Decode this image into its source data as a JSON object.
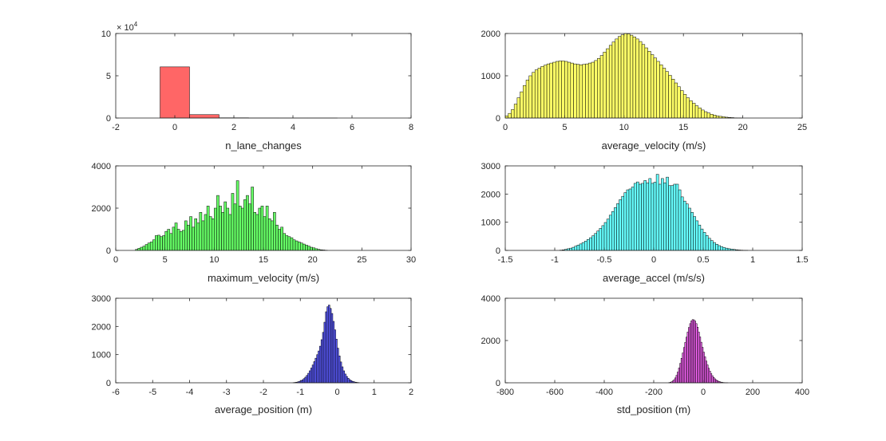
{
  "chart_data": [
    {
      "type": "bar",
      "xlabel": "n_lane_changes",
      "xlim": [
        -2,
        8
      ],
      "ylim": [
        0,
        100000
      ],
      "xticks": [
        "-2",
        "0",
        "2",
        "4",
        "6",
        "8"
      ],
      "yticks": [
        "0",
        "5",
        "10"
      ],
      "y_exponent_label": "× 10",
      "y_exponent": "4",
      "color": "#ff6666",
      "bin_width": 1,
      "x": [
        0,
        1,
        2,
        3,
        4,
        5,
        6,
        7
      ],
      "values": [
        60500,
        4000,
        300,
        60,
        15,
        5,
        2,
        1
      ]
    },
    {
      "type": "bar",
      "xlabel": "average_velocity (m/s)",
      "xlim": [
        0,
        25
      ],
      "ylim": [
        0,
        2000
      ],
      "xticks": [
        "0",
        "5",
        "10",
        "15",
        "20",
        "25"
      ],
      "yticks": [
        "0",
        "1000",
        "2000"
      ],
      "color": "#ffff66",
      "bin_width": 0.25,
      "x": [
        0.125,
        0.375,
        0.625,
        0.875,
        1.125,
        1.375,
        1.625,
        1.875,
        2.125,
        2.375,
        2.625,
        2.875,
        3.125,
        3.375,
        3.625,
        3.875,
        4.125,
        4.375,
        4.625,
        4.875,
        5.125,
        5.375,
        5.625,
        5.875,
        6.125,
        6.375,
        6.625,
        6.875,
        7.125,
        7.375,
        7.625,
        7.875,
        8.125,
        8.375,
        8.625,
        8.875,
        9.125,
        9.375,
        9.625,
        9.875,
        10.125,
        10.375,
        10.625,
        10.875,
        11.125,
        11.375,
        11.625,
        11.875,
        12.125,
        12.375,
        12.625,
        12.875,
        13.125,
        13.375,
        13.625,
        13.875,
        14.125,
        14.375,
        14.625,
        14.875,
        15.125,
        15.375,
        15.625,
        15.875,
        16.125,
        16.375,
        16.625,
        16.875,
        17.125,
        17.375,
        17.625,
        17.875,
        18.125,
        18.375,
        18.625,
        18.875,
        19.125,
        19.375,
        19.625,
        19.875
      ],
      "values": [
        50,
        110,
        200,
        330,
        480,
        620,
        770,
        900,
        1000,
        1080,
        1140,
        1180,
        1220,
        1250,
        1280,
        1300,
        1320,
        1340,
        1350,
        1350,
        1340,
        1320,
        1300,
        1280,
        1270,
        1260,
        1270,
        1280,
        1300,
        1320,
        1360,
        1410,
        1480,
        1560,
        1640,
        1720,
        1800,
        1870,
        1930,
        1970,
        2000,
        1990,
        1960,
        1920,
        1870,
        1810,
        1740,
        1660,
        1580,
        1500,
        1420,
        1340,
        1260,
        1180,
        1100,
        1010,
        920,
        830,
        740,
        650,
        560,
        480,
        410,
        350,
        290,
        240,
        190,
        150,
        120,
        90,
        70,
        50,
        40,
        30,
        20,
        15,
        10,
        5,
        3,
        2
      ]
    },
    {
      "type": "bar",
      "xlabel": "maximum_velocity (m/s)",
      "xlim": [
        0,
        30
      ],
      "ylim": [
        0,
        4000
      ],
      "xticks": [
        "0",
        "5",
        "10",
        "15",
        "20",
        "25",
        "30"
      ],
      "yticks": [
        "0",
        "2000",
        "4000"
      ],
      "color": "#66ff66",
      "bin_width": 0.25,
      "x": [
        2.125,
        2.375,
        2.625,
        2.875,
        3.125,
        3.375,
        3.625,
        3.875,
        4.125,
        4.375,
        4.625,
        4.875,
        5.125,
        5.375,
        5.625,
        5.875,
        6.125,
        6.375,
        6.625,
        6.875,
        7.125,
        7.375,
        7.625,
        7.875,
        8.125,
        8.375,
        8.625,
        8.875,
        9.125,
        9.375,
        9.625,
        9.875,
        10.125,
        10.375,
        10.625,
        10.875,
        11.125,
        11.375,
        11.625,
        11.875,
        12.125,
        12.375,
        12.625,
        12.875,
        13.125,
        13.375,
        13.625,
        13.875,
        14.125,
        14.375,
        14.625,
        14.875,
        15.125,
        15.375,
        15.625,
        15.875,
        16.125,
        16.375,
        16.625,
        16.875,
        17.125,
        17.375,
        17.625,
        17.875,
        18.125,
        18.375,
        18.625,
        18.875,
        19.125,
        19.375,
        19.625,
        19.875,
        20.125,
        20.375,
        20.625,
        20.875,
        21.125,
        21.375
      ],
      "values": [
        50,
        100,
        150,
        200,
        280,
        350,
        400,
        500,
        700,
        720,
        650,
        700,
        900,
        1000,
        800,
        1100,
        1300,
        1000,
        900,
        950,
        1400,
        1200,
        1600,
        1100,
        1500,
        1300,
        1800,
        1400,
        1700,
        2100,
        1600,
        1500,
        2000,
        2600,
        2100,
        1800,
        2300,
        2000,
        1700,
        2700,
        2200,
        3300,
        2100,
        2000,
        2400,
        2600,
        2200,
        3000,
        1800,
        1700,
        2000,
        2100,
        1600,
        2100,
        1500,
        1400,
        1800,
        1200,
        1000,
        1100,
        800,
        700,
        650,
        600,
        500,
        450,
        400,
        350,
        300,
        250,
        200,
        150,
        120,
        80,
        50,
        30,
        20,
        10
      ]
    },
    {
      "type": "bar",
      "xlabel": "average_accel (m/s/s)",
      "xlim": [
        -1.5,
        1.5
      ],
      "ylim": [
        0,
        3000
      ],
      "xticks": [
        "-1.5",
        "-1",
        "-0.5",
        "0",
        "0.5",
        "1",
        "1.5"
      ],
      "yticks": [
        "0",
        "1000",
        "2000",
        "3000"
      ],
      "color": "#66ffff",
      "bin_width": 0.025,
      "x": [
        -0.9375,
        -0.9125,
        -0.8875,
        -0.8625,
        -0.8375,
        -0.8125,
        -0.7875,
        -0.7625,
        -0.7375,
        -0.7125,
        -0.6875,
        -0.6625,
        -0.6375,
        -0.6125,
        -0.5875,
        -0.5625,
        -0.5375,
        -0.5125,
        -0.4875,
        -0.4625,
        -0.4375,
        -0.4125,
        -0.3875,
        -0.3625,
        -0.3375,
        -0.3125,
        -0.2875,
        -0.2625,
        -0.2375,
        -0.2125,
        -0.1875,
        -0.1625,
        -0.1375,
        -0.1125,
        -0.0875,
        -0.0625,
        -0.0375,
        -0.0125,
        0.0125,
        0.0375,
        0.0625,
        0.0875,
        0.1125,
        0.1375,
        0.1625,
        0.1875,
        0.2125,
        0.2375,
        0.2625,
        0.2875,
        0.3125,
        0.3375,
        0.3625,
        0.3875,
        0.4125,
        0.4375,
        0.4625,
        0.4875,
        0.5125,
        0.5375,
        0.5625,
        0.5875,
        0.6125,
        0.6375,
        0.6625,
        0.6875,
        0.7125,
        0.7375,
        0.7625,
        0.7875,
        0.8125,
        0.8375,
        0.8625,
        0.8875,
        0.9125,
        0.9375
      ],
      "values": [
        10,
        20,
        40,
        60,
        80,
        110,
        150,
        190,
        230,
        280,
        330,
        390,
        450,
        520,
        600,
        690,
        780,
        880,
        990,
        1110,
        1250,
        1380,
        1520,
        1660,
        1800,
        1920,
        2050,
        2150,
        2180,
        2250,
        2380,
        2430,
        2350,
        2380,
        2480,
        2400,
        2550,
        2380,
        2420,
        2700,
        2350,
        2550,
        2400,
        2600,
        2300,
        2300,
        2350,
        2350,
        2150,
        1900,
        1750,
        1650,
        1500,
        1350,
        1200,
        1050,
        900,
        760,
        640,
        530,
        430,
        350,
        280,
        220,
        170,
        130,
        100,
        80,
        60,
        45,
        35,
        25,
        15,
        10,
        5,
        3
      ]
    },
    {
      "type": "bar",
      "xlabel": "average_position (m)",
      "xlim": [
        -6,
        2
      ],
      "ylim": [
        0,
        3000
      ],
      "xticks": [
        "-6",
        "-5",
        "-4",
        "-3",
        "-2",
        "-1",
        "0",
        "1",
        "2"
      ],
      "yticks": [
        "0",
        "1000",
        "2000",
        "3000"
      ],
      "color": "#5c5cff",
      "bin_width": 0.04,
      "x": [
        -1.18,
        -1.14,
        -1.1,
        -1.06,
        -1.02,
        -0.98,
        -0.94,
        -0.9,
        -0.86,
        -0.82,
        -0.78,
        -0.74,
        -0.7,
        -0.66,
        -0.62,
        -0.58,
        -0.54,
        -0.5,
        -0.46,
        -0.42,
        -0.38,
        -0.34,
        -0.3,
        -0.26,
        -0.22,
        -0.18,
        -0.14,
        -0.1,
        -0.06,
        -0.02,
        0.02,
        0.06,
        0.1,
        0.14,
        0.18,
        0.22,
        0.26,
        0.3,
        0.34,
        0.38,
        0.42,
        0.46,
        0.5,
        0.54,
        0.58
      ],
      "values": [
        8,
        14,
        22,
        34,
        52,
        76,
        107,
        148,
        200,
        263,
        338,
        426,
        524,
        633,
        751,
        873,
        998,
        1130,
        1300,
        1530,
        1790,
        2150,
        2520,
        2700,
        2760,
        2640,
        2460,
        2180,
        1880,
        1550,
        1230,
        955,
        740,
        567,
        425,
        313,
        227,
        161,
        112,
        77,
        51,
        34,
        22,
        14,
        8
      ]
    },
    {
      "type": "bar",
      "xlabel": "std_position (m)",
      "xlim": [
        -800,
        400
      ],
      "ylim": [
        0,
        4000
      ],
      "xticks": [
        "-800",
        "-600",
        "-400",
        "-200",
        "0",
        "200",
        "400"
      ],
      "yticks": [
        "0",
        "2000",
        "4000"
      ],
      "color": "#ff66ff",
      "bin_width": 5,
      "x": [
        -137.5,
        -132.5,
        -127.5,
        -122.5,
        -117.5,
        -112.5,
        -107.5,
        -102.5,
        -97.5,
        -92.5,
        -87.5,
        -82.5,
        -77.5,
        -72.5,
        -67.5,
        -62.5,
        -57.5,
        -52.5,
        -47.5,
        -42.5,
        -37.5,
        -32.5,
        -27.5,
        -22.5,
        -17.5,
        -12.5,
        -7.5,
        -2.5,
        2.5,
        7.5,
        12.5,
        17.5,
        22.5,
        27.5,
        32.5,
        37.5,
        42.5,
        47.5,
        52.5,
        57.5,
        62.5,
        67.5,
        72.5,
        77.5,
        82.5,
        87.5,
        92.5,
        97.5
      ],
      "values": [
        12,
        25,
        48,
        86,
        146,
        233,
        354,
        510,
        701,
        921,
        1160,
        1410,
        1670,
        1910,
        2160,
        2400,
        2620,
        2800,
        2930,
        2990,
        2980,
        2920,
        2800,
        2630,
        2400,
        2170,
        1920,
        1680,
        1450,
        1230,
        1030,
        848,
        688,
        550,
        433,
        335,
        255,
        190,
        139,
        100,
        70,
        48,
        32,
        20,
        13,
        8,
        5,
        3
      ]
    }
  ]
}
